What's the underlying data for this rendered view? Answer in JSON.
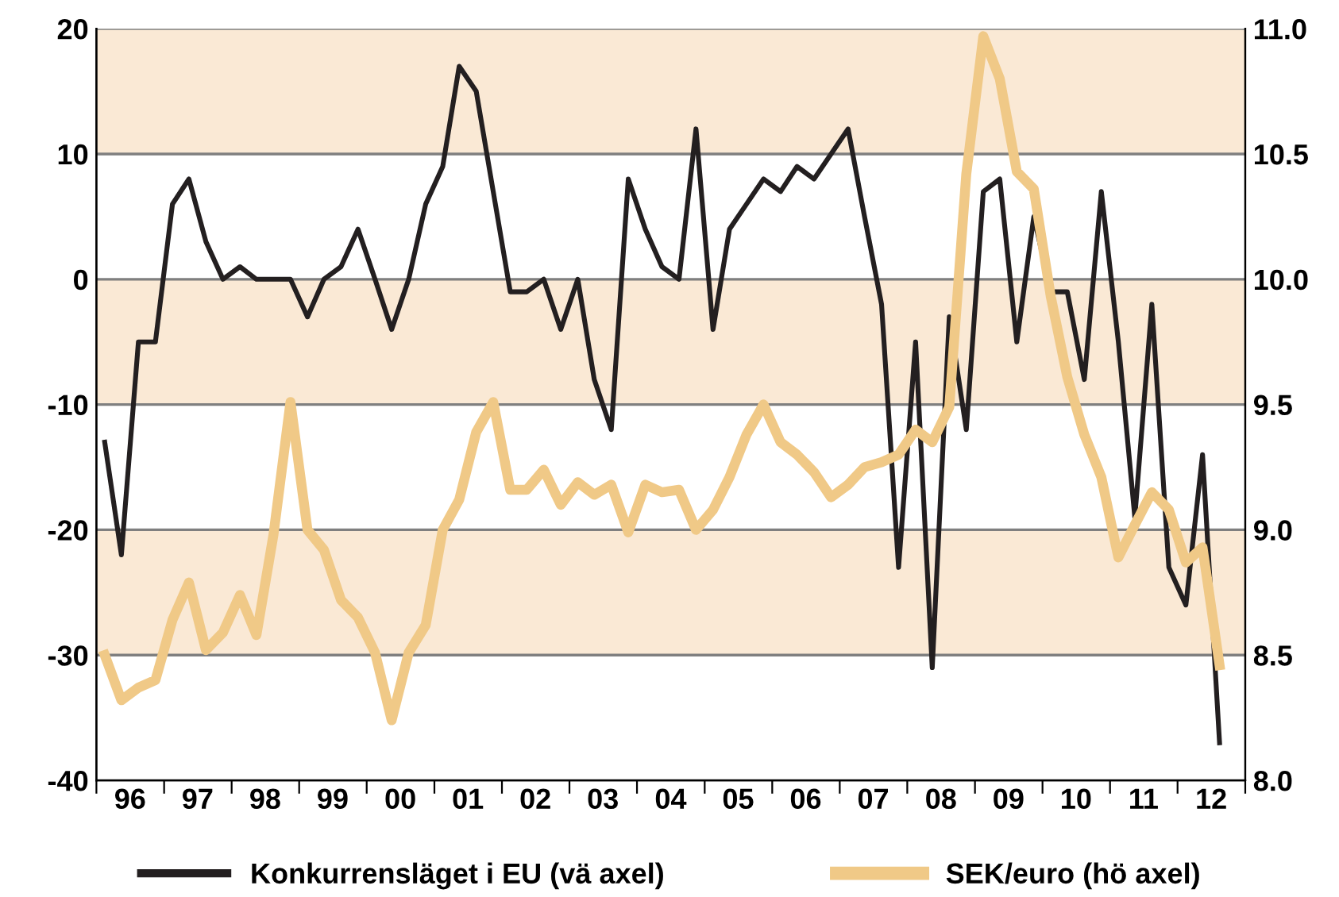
{
  "chart_data": {
    "type": "line",
    "x": [
      "1996-02-15",
      "1996-05-15",
      "1996-08-15",
      "1996-11-15",
      "1997-02-15",
      "1997-05-15",
      "1997-08-15",
      "1997-11-15",
      "1998-02-15",
      "1998-05-15",
      "1998-08-15",
      "1998-11-15",
      "1999-02-15",
      "1999-05-15",
      "1999-08-15",
      "1999-11-15",
      "2000-02-15",
      "2000-05-15",
      "2000-08-15",
      "2000-11-15",
      "2001-02-15",
      "2001-05-15",
      "2001-08-15",
      "2001-11-15",
      "2002-02-15",
      "2002-05-15",
      "2002-08-15",
      "2002-11-15",
      "2003-02-15",
      "2003-05-15",
      "2003-08-15",
      "2003-11-15",
      "2004-02-15",
      "2004-05-15",
      "2004-08-15",
      "2004-11-15",
      "2005-02-15",
      "2005-05-15",
      "2005-08-15",
      "2005-11-15",
      "2006-02-15",
      "2006-05-15",
      "2006-08-15",
      "2006-11-15",
      "2007-02-15",
      "2007-05-15",
      "2007-08-15",
      "2007-11-15",
      "2008-02-15",
      "2008-05-15",
      "2008-08-15",
      "2008-11-15",
      "2009-02-15",
      "2009-05-15",
      "2009-08-15",
      "2009-11-15",
      "2010-02-15",
      "2010-05-15",
      "2010-08-15",
      "2010-11-15",
      "2011-02-15",
      "2011-05-15",
      "2011-08-15",
      "2011-11-15",
      "2012-02-15",
      "2012-05-15",
      "2012-08-15"
    ],
    "series": [
      {
        "name": "Konkurrensläget i EU (vä axel)",
        "color": "#231f20",
        "values": [
          -13,
          -22,
          -5,
          -5,
          6,
          8,
          3,
          0,
          1,
          0,
          0,
          0,
          -3,
          0,
          1,
          4,
          0,
          -4,
          0,
          6,
          9,
          17,
          15,
          7,
          -1,
          -1,
          0,
          -4,
          0,
          -8,
          -12,
          8,
          4,
          1,
          0,
          12,
          -4,
          4,
          6,
          8,
          7,
          9,
          8,
          10,
          12,
          5,
          -2,
          -23,
          -5,
          -31,
          -3,
          -12,
          7,
          8,
          -5,
          5,
          -1,
          -1,
          -8,
          7,
          -5,
          -19,
          -2,
          -23,
          -26,
          -14,
          -37
        ]
      },
      {
        "name": "SEK/euro (hö axel)",
        "color": "#f0c987",
        "axis": "y2",
        "values": [
          8.5,
          8.32,
          8.37,
          8.4,
          8.64,
          8.79,
          8.52,
          8.59,
          8.74,
          8.58,
          8.98,
          9.51,
          9.0,
          8.92,
          8.72,
          8.65,
          8.51,
          8.24,
          8.51,
          8.62,
          9.0,
          9.12,
          9.39,
          9.51,
          9.16,
          9.16,
          9.24,
          9.1,
          9.19,
          9.14,
          9.18,
          8.99,
          9.18,
          9.15,
          9.16,
          9.0,
          9.08,
          9.21,
          9.38,
          9.5,
          9.35,
          9.3,
          9.23,
          9.13,
          9.18,
          9.25,
          9.27,
          9.3,
          9.4,
          9.35,
          9.49,
          10.42,
          10.97,
          10.8,
          10.43,
          10.36,
          9.93,
          9.61,
          9.38,
          9.21,
          8.89,
          9.02,
          9.15,
          9.08,
          8.87,
          8.93,
          8.46
        ]
      }
    ],
    "xlim": [
      "1996-01-01",
      "2013-01-01"
    ],
    "xticks": [
      {
        "value": "1996-01-01",
        "label": null
      },
      {
        "value": "1996-07-01",
        "label": "96"
      },
      {
        "value": "1997-01-01",
        "label": null
      },
      {
        "value": "1997-07-01",
        "label": "97"
      },
      {
        "value": "1998-01-01",
        "label": null
      },
      {
        "value": "1998-07-01",
        "label": "98"
      },
      {
        "value": "1999-01-01",
        "label": null
      },
      {
        "value": "1999-07-01",
        "label": "99"
      },
      {
        "value": "2000-01-01",
        "label": null
      },
      {
        "value": "2000-07-01",
        "label": "00"
      },
      {
        "value": "2001-01-01",
        "label": null
      },
      {
        "value": "2001-07-01",
        "label": "01"
      },
      {
        "value": "2002-01-01",
        "label": null
      },
      {
        "value": "2002-07-01",
        "label": "02"
      },
      {
        "value": "2003-01-01",
        "label": null
      },
      {
        "value": "2003-07-01",
        "label": "03"
      },
      {
        "value": "2004-01-01",
        "label": null
      },
      {
        "value": "2004-07-01",
        "label": "04"
      },
      {
        "value": "2005-01-01",
        "label": null
      },
      {
        "value": "2005-07-01",
        "label": "05"
      },
      {
        "value": "2006-01-01",
        "label": null
      },
      {
        "value": "2006-07-01",
        "label": "06"
      },
      {
        "value": "2007-01-01",
        "label": null
      },
      {
        "value": "2007-07-01",
        "label": "07"
      },
      {
        "value": "2008-01-01",
        "label": null
      },
      {
        "value": "2008-07-01",
        "label": "08"
      },
      {
        "value": "2009-01-01",
        "label": null
      },
      {
        "value": "2009-07-01",
        "label": "09"
      },
      {
        "value": "2010-01-01",
        "label": null
      },
      {
        "value": "2010-07-01",
        "label": "10"
      },
      {
        "value": "2011-01-01",
        "label": null
      },
      {
        "value": "2011-07-01",
        "label": "11"
      },
      {
        "value": "2012-01-01",
        "label": null
      },
      {
        "value": "2012-07-01",
        "label": "12"
      },
      {
        "value": "2013-01-01",
        "label": null
      }
    ],
    "ylim": [
      -40,
      20
    ],
    "yticks": [
      -40,
      -30,
      -20,
      -10,
      0,
      10,
      20
    ],
    "y2lim": [
      8,
      11
    ],
    "y2ticks": [
      {
        "value": 8,
        "label": "8.0"
      },
      {
        "value": 8.5,
        "label": "8.5"
      },
      {
        "value": 9,
        "label": "9.0"
      },
      {
        "value": 9.5,
        "label": "9.5"
      },
      {
        "value": 10,
        "label": "10.0"
      },
      {
        "value": 10.5,
        "label": "10.5"
      },
      {
        "value": 11,
        "label": "11.0"
      }
    ],
    "bands": [
      {
        "axis": "y",
        "from": 10,
        "to": 20,
        "color": "#fae9d5"
      },
      {
        "axis": "y",
        "from": -10,
        "to": 0,
        "color": "#fae9d5"
      },
      {
        "axis": "y",
        "from": -30,
        "to": -20,
        "color": "#fae9d5"
      }
    ],
    "grid": "y",
    "legend": "bottom",
    "marker": "none",
    "line_style": "solid"
  }
}
